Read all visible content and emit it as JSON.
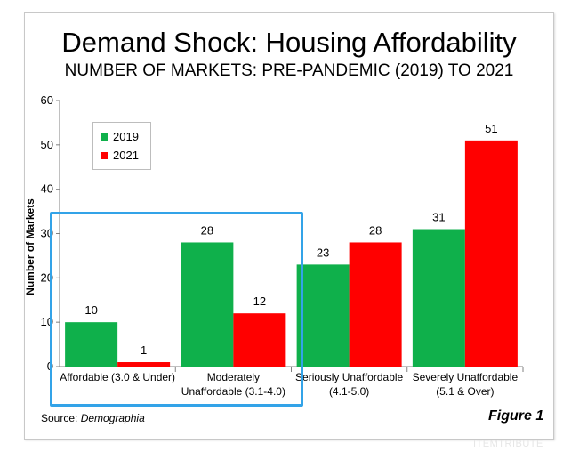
{
  "header": {
    "title": "Demand Shock: Housing Affordability",
    "subtitle": "NUMBER OF MARKETS: PRE-PANDEMIC (2019) TO 2021"
  },
  "footer": {
    "source_prefix": "Source: ",
    "source_name": "Demographia",
    "figure_label": "Figure 1",
    "watermark": "ITEMTRIBUTE"
  },
  "colors": {
    "series_2019": "#0fb04b",
    "series_2021": "#ff0000",
    "highlight": "#33a3e8"
  },
  "chart_data": {
    "type": "bar",
    "title": "Demand Shock: Housing Affordability",
    "subtitle": "NUMBER OF MARKETS: PRE-PANDEMIC (2019) TO 2021",
    "xlabel": "",
    "ylabel": "Number of Markets",
    "ylim": [
      0,
      60
    ],
    "yticks": [
      0,
      10,
      20,
      30,
      40,
      50,
      60
    ],
    "grid": false,
    "legend_position": "top-left",
    "categories": [
      [
        "Affordable (3.0 & Under)"
      ],
      [
        "Moderately",
        "Unaffordable (3.1-4.0)"
      ],
      [
        "Seriously Unaffordable",
        "(4.1-5.0)"
      ],
      [
        "Severely Unaffordable",
        "(5.1 & Over)"
      ]
    ],
    "series": [
      {
        "name": "2019",
        "color": "#0fb04b",
        "values": [
          10,
          28,
          23,
          31
        ]
      },
      {
        "name": "2021",
        "color": "#ff0000",
        "values": [
          1,
          12,
          28,
          51
        ]
      }
    ],
    "highlighted_categories": [
      0,
      1
    ]
  }
}
